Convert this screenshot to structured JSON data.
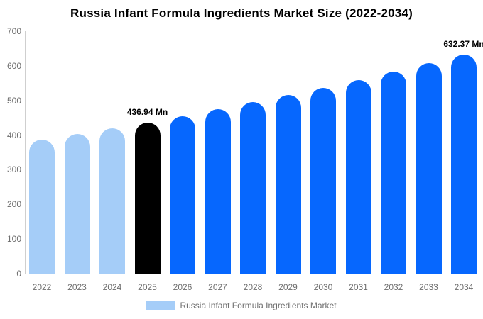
{
  "title": "Russia Infant Formula Ingredients Market Size (2022-2034)",
  "colors": {
    "light_blue": "#A5CDF8",
    "blue": "#0667FE",
    "highlight_black": "#000000",
    "axis_line": "#cfcfcf",
    "tick_text": "#6e6e6e"
  },
  "legend": {
    "label": "Russia Infant Formula Ingredients Market",
    "swatch_color": "#A5CDF8"
  },
  "chart_data": {
    "type": "bar",
    "title": "Russia Infant Formula Ingredients Market Size (2022-2034)",
    "categories": [
      "2022",
      "2023",
      "2024",
      "2025",
      "2026",
      "2027",
      "2028",
      "2029",
      "2030",
      "2031",
      "2032",
      "2033",
      "2034"
    ],
    "values": [
      386.2,
      402.5,
      419.3,
      436.94,
      455.3,
      474.4,
      494.3,
      515.1,
      536.7,
      559.2,
      582.7,
      607.1,
      632.37
    ],
    "unit": "Mn",
    "bar_colors": [
      "#A5CDF8",
      "#A5CDF8",
      "#A5CDF8",
      "#000000",
      "#0667FE",
      "#0667FE",
      "#0667FE",
      "#0667FE",
      "#0667FE",
      "#0667FE",
      "#0667FE",
      "#0667FE",
      "#0667FE"
    ],
    "ylim": [
      0,
      700
    ],
    "yticks": [
      0,
      100,
      200,
      300,
      400,
      500,
      600,
      700
    ],
    "grid": false,
    "legend_position": "bottom",
    "annotations": [
      {
        "category": "2025",
        "text": "436.94 Mn"
      },
      {
        "category": "2034",
        "text": "632.37 Mn"
      }
    ]
  }
}
